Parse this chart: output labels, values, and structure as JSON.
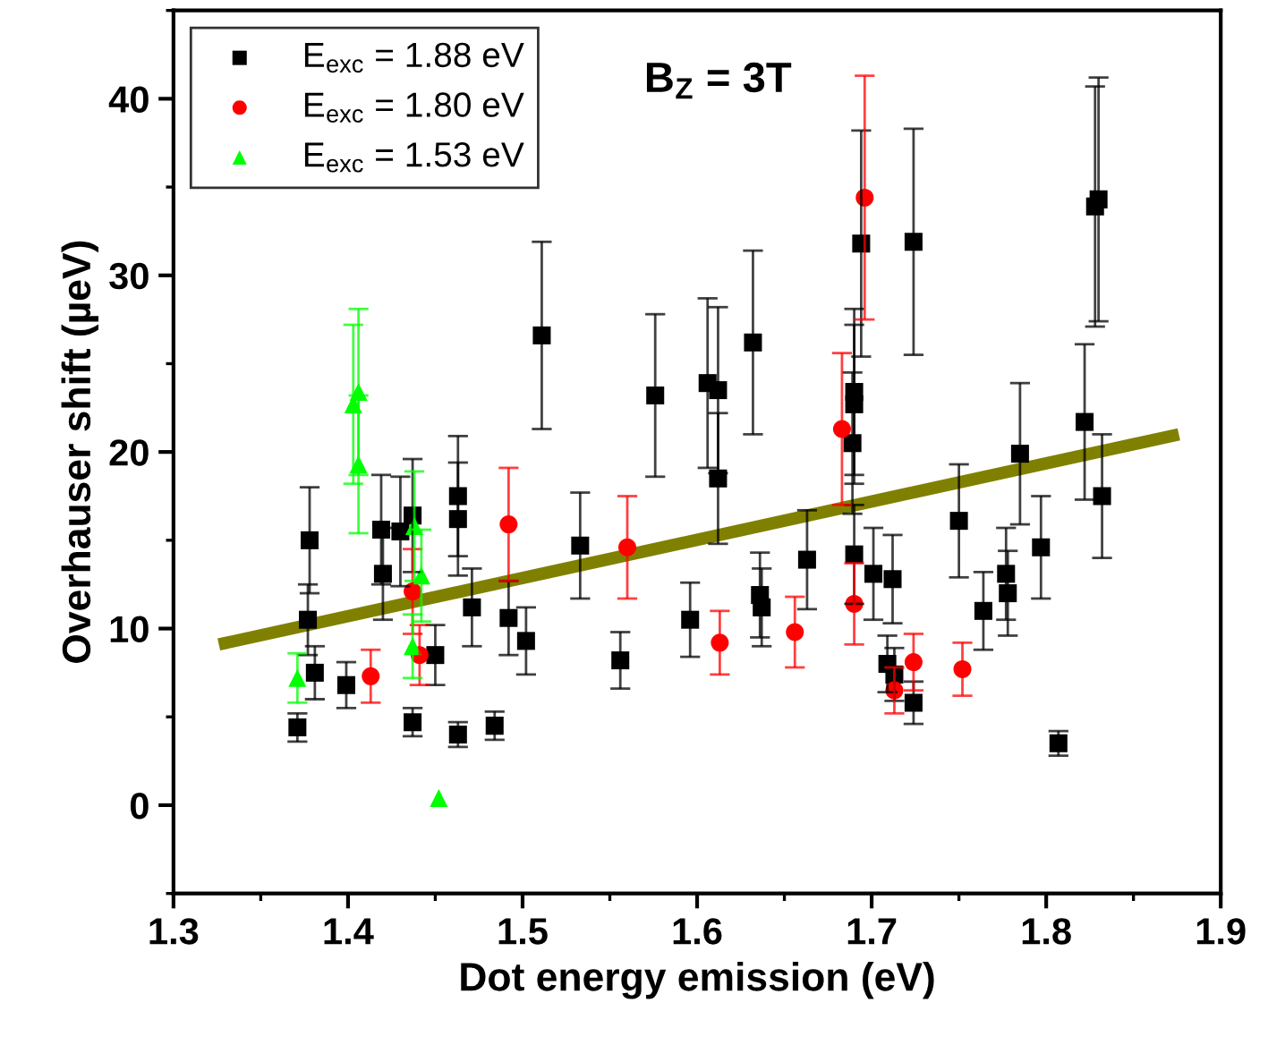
{
  "chart_data": {
    "type": "scatter",
    "xlabel": "Dot energy emission (eV)",
    "ylabel": "Overhauser shift (µeV)",
    "annotations": [
      "B$_{Z}$ = 3T"
    ],
    "xlim": [
      1.3,
      1.9
    ],
    "xticks": [
      1.3,
      1.4,
      1.5,
      1.6,
      1.7,
      1.8,
      1.9
    ],
    "ylim": [
      -5,
      45
    ],
    "yticks": [
      0,
      10,
      20,
      30,
      40
    ],
    "grid": false,
    "legend": "top left",
    "series": [
      {
        "name": "E$_{exc}$ = 1.88 eV",
        "color": "#000000",
        "marker": "square",
        "x": [
          1.371,
          1.377,
          1.378,
          1.381,
          1.399,
          1.419,
          1.42,
          1.43,
          1.437,
          1.437,
          1.45,
          1.463,
          1.463,
          1.463,
          1.471,
          1.484,
          1.492,
          1.502,
          1.511,
          1.533,
          1.556,
          1.576,
          1.596,
          1.606,
          1.612,
          1.612,
          1.632,
          1.636,
          1.637,
          1.663,
          1.689,
          1.69,
          1.69,
          1.69,
          1.694,
          1.701,
          1.709,
          1.712,
          1.713,
          1.724,
          1.724,
          1.75,
          1.764,
          1.777,
          1.778,
          1.785,
          1.797,
          1.807,
          1.822,
          1.828,
          1.83,
          1.832
        ],
        "values": [
          4.4,
          10.5,
          15.0,
          7.5,
          6.8,
          15.6,
          13.1,
          15.5,
          16.4,
          4.7,
          8.5,
          17.5,
          16.2,
          4.0,
          11.2,
          4.5,
          10.6,
          9.3,
          26.6,
          14.7,
          8.2,
          23.2,
          10.5,
          23.9,
          23.5,
          18.5,
          26.2,
          11.9,
          11.2,
          13.9,
          20.5,
          23.4,
          22.7,
          14.2,
          31.8,
          13.1,
          8.0,
          12.8,
          7.4,
          5.8,
          31.9,
          16.1,
          11.0,
          13.1,
          12.0,
          19.9,
          14.6,
          3.5,
          21.7,
          33.9,
          34.3,
          17.5
        ],
        "errors": [
          0.8,
          2.0,
          3.0,
          1.5,
          1.3,
          3.1,
          2.6,
          3.1,
          3.2,
          0.8,
          1.7,
          3.4,
          3.2,
          0.7,
          2.2,
          0.8,
          2.1,
          1.9,
          5.3,
          3.0,
          1.6,
          4.6,
          2.1,
          4.8,
          4.7,
          3.7,
          5.2,
          2.4,
          2.2,
          2.8,
          4.0,
          4.7,
          4.5,
          2.8,
          6.4,
          2.6,
          1.6,
          2.5,
          1.5,
          1.2,
          6.4,
          3.2,
          2.2,
          2.6,
          2.4,
          4.0,
          2.9,
          0.7,
          4.4,
          6.8,
          6.9,
          3.5
        ]
      },
      {
        "name": "E$_{exc}$ = 1.80 eV",
        "color": "#ff0000",
        "marker": "circle",
        "x": [
          1.413,
          1.437,
          1.441,
          1.492,
          1.56,
          1.613,
          1.656,
          1.683,
          1.69,
          1.696,
          1.713,
          1.724,
          1.752
        ],
        "values": [
          7.3,
          12.1,
          8.5,
          15.9,
          14.6,
          9.2,
          9.8,
          21.3,
          11.4,
          34.4,
          6.5,
          8.1,
          7.7
        ],
        "errors": [
          1.5,
          2.4,
          1.7,
          3.2,
          2.9,
          1.8,
          2.0,
          4.3,
          2.3,
          6.9,
          1.3,
          1.6,
          1.5
        ]
      },
      {
        "name": "E$_{exc}$ = 1.53 eV",
        "color": "#00ff00",
        "marker": "triangle",
        "x": [
          1.371,
          1.403,
          1.406,
          1.406,
          1.438,
          1.437,
          1.442,
          1.452
        ],
        "values": [
          7.2,
          22.7,
          23.4,
          19.3,
          15.8,
          9.0,
          13.0,
          0.4
        ],
        "errors": [
          1.4,
          4.5,
          4.7,
          3.9,
          3.1,
          1.8,
          2.6,
          null
        ]
      },
      {
        "type": "line",
        "color": "#808000",
        "marker": "none",
        "line_style": "solid",
        "x": [
          1.326,
          1.876
        ],
        "values": [
          9.1,
          21.0
        ]
      }
    ]
  }
}
